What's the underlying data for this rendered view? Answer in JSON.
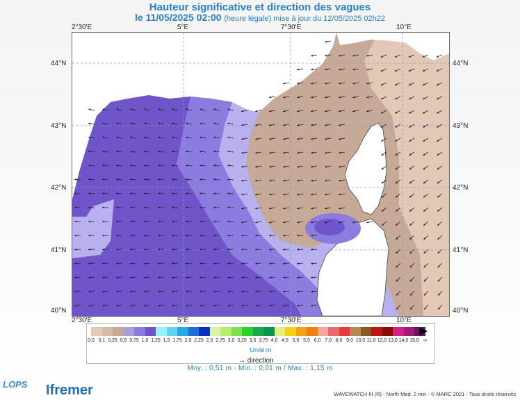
{
  "header": {
    "title": "Hauteur significative et direction des vagues",
    "date": "le 11/05/2025 02:00",
    "update_note": "(heure légale) mise à jour du 12/05/2025 02h22"
  },
  "map": {
    "lon_ticks": [
      "2°30'E",
      "5°E",
      "7°30'E",
      "10°E"
    ],
    "lat_ticks": [
      "44°N",
      "43°N",
      "42°N",
      "41°N",
      "40°N"
    ]
  },
  "legend": {
    "colors": [
      "#e3c9b5",
      "#d4bca5",
      "#c6a996",
      "#a89fd6",
      "#8c7ce0",
      "#6f55c9",
      "#9bf2ff",
      "#5fd3f0",
      "#2aa8e6",
      "#1e6fd9",
      "#0a2fb8",
      "#d6f5a8",
      "#b6ef6c",
      "#7de053",
      "#2ccf2c",
      "#1aa84e",
      "#11914f",
      "#e4f07c",
      "#f5d21a",
      "#f2a218",
      "#ef7f12",
      "#f7a6a0",
      "#ee6a6a",
      "#e23c3c",
      "#b5875a",
      "#8a5a24",
      "#b81818",
      "#8a0a0a",
      "#d42080",
      "#a01878",
      "#6a1060"
    ],
    "ticks": [
      "0,0",
      "0,1",
      "0,25",
      "0,5",
      "0,75",
      "1,0",
      "1,25",
      "1,5",
      "1,75",
      "2,0",
      "2,25",
      "2,5",
      "2,75",
      "3,0",
      "3,25",
      "3,5",
      "3,75",
      "4,0",
      "4,5",
      "5,0",
      "5,5",
      "6,0",
      "7,0",
      "8,0",
      "9,0",
      "10,0",
      "11,0",
      "12,0",
      "13,0",
      "14,0",
      "15,0",
      "∞"
    ],
    "unit": "Unité:m",
    "direction_label": "direction"
  },
  "stats": "Moy. : 0,51 m   -   Min. : 0,01 m / Max. : 1,15 m",
  "branding": {
    "lops": "LOPS",
    "ifremer": "Ifremer",
    "credit": "WAVEWATCH III (R) - North Med. 2 min - © MARC 2021 - Tous droits réservés"
  }
}
